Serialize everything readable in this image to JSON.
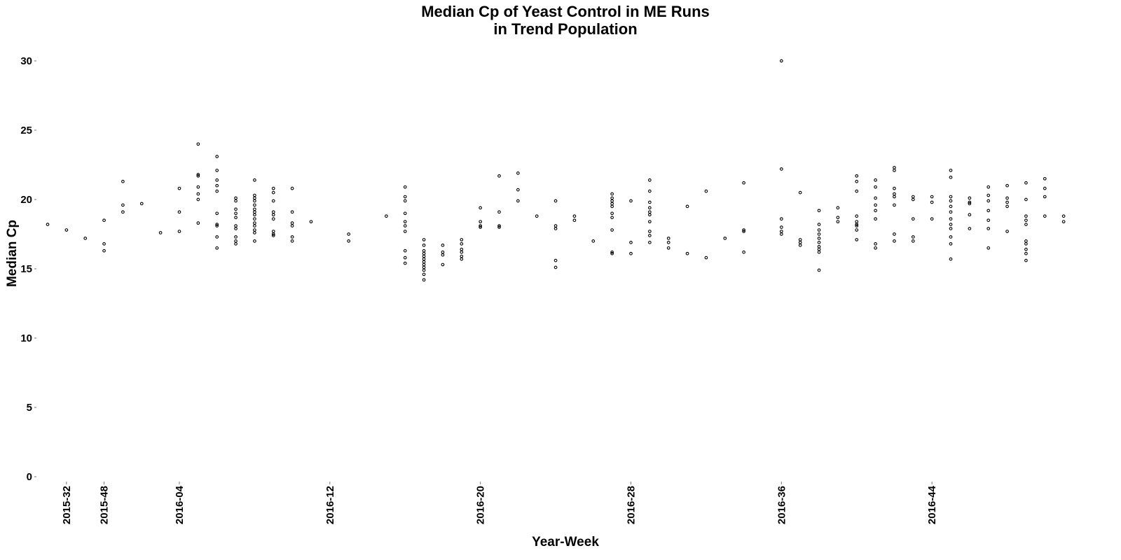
{
  "chart_data": {
    "type": "scatter",
    "title_line1": "Median Cp of Yeast Control in ME Runs",
    "title_line2": "in Trend Population",
    "xlabel": "Year-Week",
    "ylabel": "Median Cp",
    "ylim": [
      0,
      30
    ],
    "y_ticks": [
      0,
      5,
      10,
      15,
      20,
      25,
      30
    ],
    "x_categories": [
      "2015-30",
      "2015-32",
      "2015-46",
      "2015-48",
      "2015-50",
      "2015-52",
      "2016-02",
      "2016-04",
      "2016-05",
      "2016-06",
      "2016-07",
      "2016-08",
      "2016-09",
      "2016-10",
      "2016-11",
      "2016-12",
      "2016-13",
      "2016-14",
      "2016-15",
      "2016-16",
      "2016-17",
      "2016-18",
      "2016-19",
      "2016-20",
      "2016-21",
      "2016-22",
      "2016-23",
      "2016-24",
      "2016-25",
      "2016-26",
      "2016-27",
      "2016-28",
      "2016-29",
      "2016-30",
      "2016-31",
      "2016-32",
      "2016-33",
      "2016-34",
      "2016-35",
      "2016-36",
      "2016-37",
      "2016-38",
      "2016-39",
      "2016-40",
      "2016-41",
      "2016-42",
      "2016-43",
      "2016-44",
      "2016-45",
      "2016-46",
      "2016-47",
      "2016-48",
      "2016-49",
      "2016-50",
      "2016-51",
      "2016-52"
    ],
    "x_tick_labels": [
      "2015-32",
      "2015-48",
      "2016-04",
      "2016-12",
      "2016-20",
      "2016-28",
      "2016-36",
      "2016-44"
    ],
    "grid": false,
    "legend": "none",
    "points": [
      {
        "x": "2015-30",
        "y": [
          18.2
        ]
      },
      {
        "x": "2015-32",
        "y": [
          17.8
        ]
      },
      {
        "x": "2015-46",
        "y": [
          17.2
        ]
      },
      {
        "x": "2015-48",
        "y": [
          18.5,
          16.8,
          16.3
        ]
      },
      {
        "x": "2015-50",
        "y": [
          21.3,
          19.6,
          19.1
        ]
      },
      {
        "x": "2015-52",
        "y": [
          19.7
        ]
      },
      {
        "x": "2016-02",
        "y": [
          17.6
        ]
      },
      {
        "x": "2016-04",
        "y": [
          20.8,
          19.1,
          17.7
        ]
      },
      {
        "x": "2016-05",
        "y": [
          24.0,
          21.8,
          21.7,
          20.9,
          20.4,
          20.0,
          18.3
        ]
      },
      {
        "x": "2016-06",
        "y": [
          23.1,
          22.1,
          21.4,
          21.0,
          20.6,
          19.0,
          18.2,
          18.1,
          17.3,
          16.5
        ]
      },
      {
        "x": "2016-07",
        "y": [
          20.1,
          19.9,
          19.3,
          19.0,
          18.7,
          18.1,
          17.9,
          17.3,
          17.0,
          16.8
        ]
      },
      {
        "x": "2016-08",
        "y": [
          21.4,
          20.3,
          20.1,
          19.9,
          19.6,
          19.3,
          19.1,
          18.9,
          18.6,
          18.3,
          18.1,
          17.8,
          17.6,
          17.0
        ]
      },
      {
        "x": "2016-09",
        "y": [
          20.8,
          20.5,
          19.9,
          19.1,
          18.9,
          18.6,
          17.7,
          17.5,
          17.4
        ]
      },
      {
        "x": "2016-10",
        "y": [
          20.8,
          19.1,
          18.3,
          18.1,
          17.3,
          17.0
        ]
      },
      {
        "x": "2016-11",
        "y": [
          18.4
        ]
      },
      {
        "x": "2016-13",
        "y": [
          17.5,
          17.0
        ]
      },
      {
        "x": "2016-15",
        "y": [
          18.8
        ]
      },
      {
        "x": "2016-16",
        "y": [
          20.9,
          20.2,
          19.9,
          19.0,
          18.4,
          18.1,
          17.7,
          16.3,
          15.8,
          15.4
        ]
      },
      {
        "x": "2016-17",
        "y": [
          17.1,
          16.7,
          16.3,
          16.1,
          15.9,
          15.7,
          15.5,
          15.3,
          15.1,
          14.9,
          14.6,
          14.2
        ]
      },
      {
        "x": "2016-18",
        "y": [
          16.7,
          16.2,
          16.0,
          15.3
        ]
      },
      {
        "x": "2016-19",
        "y": [
          17.1,
          16.8,
          16.4,
          16.2,
          15.9,
          15.7
        ]
      },
      {
        "x": "2016-20",
        "y": [
          19.4,
          18.4,
          18.1,
          18.0
        ]
      },
      {
        "x": "2016-21",
        "y": [
          21.7,
          19.1,
          18.1,
          18.0
        ]
      },
      {
        "x": "2016-22",
        "y": [
          21.9,
          20.7,
          19.9
        ]
      },
      {
        "x": "2016-23",
        "y": [
          18.8
        ]
      },
      {
        "x": "2016-24",
        "y": [
          19.9,
          18.1,
          17.9,
          15.6,
          15.1
        ]
      },
      {
        "x": "2016-25",
        "y": [
          18.8,
          18.5
        ]
      },
      {
        "x": "2016-26",
        "y": [
          17.0
        ]
      },
      {
        "x": "2016-27",
        "y": [
          20.4,
          20.1,
          19.9,
          19.7,
          19.5,
          19.0,
          18.7,
          17.8,
          16.2,
          16.1
        ]
      },
      {
        "x": "2016-28",
        "y": [
          19.9,
          16.9,
          16.1
        ]
      },
      {
        "x": "2016-29",
        "y": [
          21.4,
          20.6,
          19.8,
          19.4,
          19.1,
          18.9,
          18.4,
          17.7,
          17.4,
          16.9
        ]
      },
      {
        "x": "2016-30",
        "y": [
          17.2,
          16.9,
          16.5
        ]
      },
      {
        "x": "2016-31",
        "y": [
          19.5,
          16.1
        ]
      },
      {
        "x": "2016-32",
        "y": [
          20.6,
          15.8
        ]
      },
      {
        "x": "2016-33",
        "y": [
          17.2
        ]
      },
      {
        "x": "2016-34",
        "y": [
          21.2,
          17.8,
          17.7,
          16.2
        ]
      },
      {
        "x": "2016-36",
        "y": [
          30.0,
          22.2,
          18.6,
          18.0,
          17.7,
          17.5
        ]
      },
      {
        "x": "2016-37",
        "y": [
          20.5,
          17.1,
          16.9,
          16.7
        ]
      },
      {
        "x": "2016-38",
        "y": [
          19.2,
          18.2,
          17.8,
          17.5,
          17.2,
          16.9,
          16.6,
          16.4,
          16.2,
          14.9
        ]
      },
      {
        "x": "2016-39",
        "y": [
          19.4,
          18.7,
          18.4
        ]
      },
      {
        "x": "2016-40",
        "y": [
          21.7,
          21.3,
          20.6,
          18.8,
          18.4,
          18.2,
          18.1,
          17.8,
          17.1
        ]
      },
      {
        "x": "2016-41",
        "y": [
          21.4,
          20.9,
          20.1,
          19.6,
          19.2,
          18.6,
          16.8,
          16.5
        ]
      },
      {
        "x": "2016-42",
        "y": [
          22.3,
          22.1,
          20.8,
          20.4,
          20.2,
          19.6,
          17.5,
          17.0
        ]
      },
      {
        "x": "2016-43",
        "y": [
          20.2,
          20.0,
          18.6,
          17.3,
          17.0
        ]
      },
      {
        "x": "2016-44",
        "y": [
          20.2,
          19.8,
          18.6
        ]
      },
      {
        "x": "2016-45",
        "y": [
          22.1,
          21.6,
          20.2,
          19.9,
          19.5,
          19.1,
          18.6,
          18.2,
          17.9,
          17.3,
          16.8,
          15.7
        ]
      },
      {
        "x": "2016-46",
        "y": [
          20.1,
          19.8,
          19.7,
          18.9,
          17.9
        ]
      },
      {
        "x": "2016-47",
        "y": [
          20.9,
          20.3,
          19.9,
          19.2,
          18.5,
          17.9,
          16.5
        ]
      },
      {
        "x": "2016-48",
        "y": [
          21.0,
          20.1,
          19.8,
          19.5,
          17.7
        ]
      },
      {
        "x": "2016-49",
        "y": [
          21.2,
          20.0,
          18.8,
          18.5,
          18.2,
          17.0,
          16.8,
          16.4,
          16.1,
          15.6
        ]
      },
      {
        "x": "2016-50",
        "y": [
          21.5,
          20.8,
          20.2,
          18.8
        ]
      },
      {
        "x": "2016-51",
        "y": [
          18.8,
          18.4
        ]
      }
    ]
  }
}
